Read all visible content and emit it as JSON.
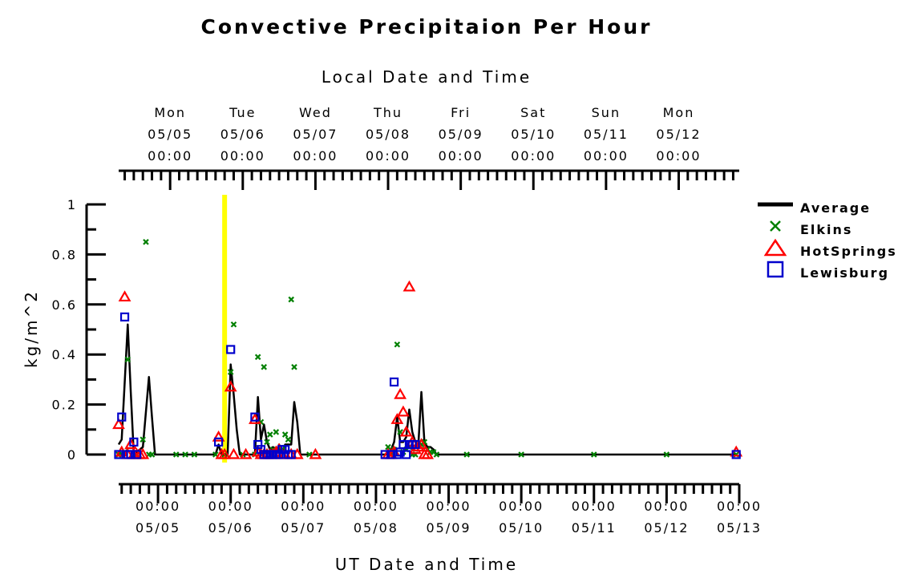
{
  "chart_data": {
    "type": "scatter",
    "title": "Convective Precipitaion Per Hour",
    "top_axis_title": "Local Date and Time",
    "bottom_axis_title": "UT Date and Time",
    "ylabel": "kg/m^2",
    "ylim": [
      0,
      1
    ],
    "y_ticks": [
      "1",
      "0.8",
      "0.6",
      "0.4",
      "0.2",
      "0"
    ],
    "y_tick_values": [
      1,
      0.8,
      0.6,
      0.4,
      0.2,
      0
    ],
    "xlim": [
      "05/04 11:00",
      "05/13 00:00"
    ],
    "bottom_ticks": [
      {
        "time": "00:00",
        "date": "05/05"
      },
      {
        "time": "00:00",
        "date": "05/06"
      },
      {
        "time": "00:00",
        "date": "05/07"
      },
      {
        "time": "00:00",
        "date": "05/08"
      },
      {
        "time": "00:00",
        "date": "05/09"
      },
      {
        "time": "00:00",
        "date": "05/10"
      },
      {
        "time": "00:00",
        "date": "05/11"
      },
      {
        "time": "00:00",
        "date": "05/12"
      },
      {
        "time": "00:00",
        "date": "05/13"
      }
    ],
    "top_ticks": [
      {
        "day": "Mon",
        "date": "05/05",
        "time": "00:00"
      },
      {
        "day": "Tue",
        "date": "05/06",
        "time": "00:00"
      },
      {
        "day": "Wed",
        "date": "05/07",
        "time": "00:00"
      },
      {
        "day": "Thu",
        "date": "05/08",
        "time": "00:00"
      },
      {
        "day": "Fri",
        "date": "05/09",
        "time": "00:00"
      },
      {
        "day": "Sat",
        "date": "05/10",
        "time": "00:00"
      },
      {
        "day": "Sun",
        "date": "05/11",
        "time": "00:00"
      },
      {
        "day": "Mon",
        "date": "05/12",
        "time": "00:00"
      }
    ],
    "local_utc_offset_hours": -4,
    "marker_line": {
      "time": "05/05 22:00",
      "color": "#ffff00"
    },
    "legend_position": "right",
    "series": [
      {
        "name": "Average",
        "style": "line",
        "color": "#000000",
        "points": [
          [
            "05/04 11:00",
            0.04
          ],
          [
            "05/04 12:00",
            0.06
          ],
          [
            "05/04 14:00",
            0.52
          ],
          [
            "05/04 15:00",
            0.25
          ],
          [
            "05/04 16:00",
            0.0
          ],
          [
            "05/04 19:00",
            0.03
          ],
          [
            "05/04 21:00",
            0.31
          ],
          [
            "05/04 22:00",
            0.15
          ],
          [
            "05/04 23:00",
            0.0
          ],
          [
            "05/05 19:00",
            0.0
          ],
          [
            "05/05 20:00",
            0.04
          ],
          [
            "05/05 21:00",
            0.0
          ],
          [
            "05/05 23:00",
            0.0
          ],
          [
            "05/06 00:00",
            0.36
          ],
          [
            "05/06 01:00",
            0.24
          ],
          [
            "05/06 02:00",
            0.1
          ],
          [
            "05/06 03:00",
            0.0
          ],
          [
            "05/06 08:00",
            0.0
          ],
          [
            "05/06 09:00",
            0.23
          ],
          [
            "05/06 10:00",
            0.06
          ],
          [
            "05/06 11:00",
            0.12
          ],
          [
            "05/06 12:00",
            0.05
          ],
          [
            "05/06 13:00",
            0.02
          ],
          [
            "05/06 14:00",
            0.03
          ],
          [
            "05/06 15:00",
            0.01
          ],
          [
            "05/06 16:00",
            0.04
          ],
          [
            "05/06 17:00",
            0.01
          ],
          [
            "05/06 18:00",
            0.04
          ],
          [
            "05/06 19:00",
            0.04
          ],
          [
            "05/06 20:00",
            0.04
          ],
          [
            "05/06 21:00",
            0.21
          ],
          [
            "05/06 22:00",
            0.13
          ],
          [
            "05/06 23:00",
            0.0
          ],
          [
            "05/08 04:00",
            0.0
          ],
          [
            "05/08 05:00",
            0.02
          ],
          [
            "05/08 06:00",
            0.05
          ],
          [
            "05/08 07:00",
            0.15
          ],
          [
            "05/08 08:00",
            0.05
          ],
          [
            "05/08 09:00",
            0.05
          ],
          [
            "05/08 10:00",
            0.07
          ],
          [
            "05/08 11:00",
            0.18
          ],
          [
            "05/08 12:00",
            0.09
          ],
          [
            "05/08 13:00",
            0.05
          ],
          [
            "05/08 14:00",
            0.04
          ],
          [
            "05/08 15:00",
            0.25
          ],
          [
            "05/08 16:00",
            0.05
          ],
          [
            "05/08 17:00",
            0.03
          ],
          [
            "05/08 18:00",
            0.03
          ],
          [
            "05/08 19:00",
            0.02
          ],
          [
            "05/08 20:00",
            0.0
          ],
          [
            "05/12 23:00",
            0.0
          ]
        ]
      },
      {
        "name": "Elkins",
        "style": "x",
        "color": "#008000",
        "points": [
          [
            "05/04 11:00",
            0.0
          ],
          [
            "05/04 12:00",
            0.0
          ],
          [
            "05/04 13:00",
            0.01
          ],
          [
            "05/04 14:00",
            0.38
          ],
          [
            "05/04 17:00",
            0.0
          ],
          [
            "05/04 19:00",
            0.06
          ],
          [
            "05/04 20:00",
            0.85
          ],
          [
            "05/04 21:00",
            0.0
          ],
          [
            "05/04 22:00",
            0.0
          ],
          [
            "05/05 06:00",
            0.0
          ],
          [
            "05/05 09:00",
            0.0
          ],
          [
            "05/05 12:00",
            0.0
          ],
          [
            "05/05 19:00",
            0.0
          ],
          [
            "05/05 22:00",
            0.0
          ],
          [
            "05/06 00:00",
            0.33
          ],
          [
            "05/06 01:00",
            0.52
          ],
          [
            "05/06 04:00",
            0.0
          ],
          [
            "05/06 08:00",
            0.0
          ],
          [
            "05/06 09:00",
            0.39
          ],
          [
            "05/06 10:00",
            0.13
          ],
          [
            "05/06 11:00",
            0.35
          ],
          [
            "05/06 12:00",
            0.05
          ],
          [
            "05/06 13:00",
            0.08
          ],
          [
            "05/06 14:00",
            0.02
          ],
          [
            "05/06 15:00",
            0.09
          ],
          [
            "05/06 16:00",
            0.02
          ],
          [
            "05/06 17:00",
            0.02
          ],
          [
            "05/06 18:00",
            0.08
          ],
          [
            "05/06 19:00",
            0.06
          ],
          [
            "05/06 20:00",
            0.62
          ],
          [
            "05/06 21:00",
            0.35
          ],
          [
            "05/07 02:00",
            0.0
          ],
          [
            "05/08 04:00",
            0.03
          ],
          [
            "05/08 05:00",
            0.0
          ],
          [
            "05/08 06:00",
            0.02
          ],
          [
            "05/08 07:00",
            0.44
          ],
          [
            "05/08 08:00",
            0.09
          ],
          [
            "05/08 09:00",
            0.01
          ],
          [
            "05/08 10:00",
            0.02
          ],
          [
            "05/08 11:00",
            0.03
          ],
          [
            "05/08 12:00",
            0.0
          ],
          [
            "05/08 13:00",
            0.0
          ],
          [
            "05/08 14:00",
            0.04
          ],
          [
            "05/08 15:00",
            0.04
          ],
          [
            "05/08 16:00",
            0.05
          ],
          [
            "05/08 17:00",
            0.02
          ],
          [
            "05/08 18:00",
            0.01
          ],
          [
            "05/08 19:00",
            0.01
          ],
          [
            "05/08 20:00",
            0.0
          ],
          [
            "05/09 06:00",
            0.0
          ],
          [
            "05/10 00:00",
            0.0
          ],
          [
            "05/11 00:00",
            0.0
          ],
          [
            "05/12 00:00",
            0.0
          ],
          [
            "05/12 23:00",
            0.0
          ]
        ]
      },
      {
        "name": "HotSprings",
        "style": "triangle",
        "color": "#ff0000",
        "points": [
          [
            "05/04 11:00",
            0.12
          ],
          [
            "05/04 12:00",
            0.01
          ],
          [
            "05/04 13:00",
            0.63
          ],
          [
            "05/04 14:00",
            0.0
          ],
          [
            "05/04 15:00",
            0.04
          ],
          [
            "05/04 16:00",
            0.0
          ],
          [
            "05/04 17:00",
            0.0
          ],
          [
            "05/04 18:00",
            0.0
          ],
          [
            "05/04 19:00",
            0.0
          ],
          [
            "05/05 20:00",
            0.07
          ],
          [
            "05/05 21:00",
            0.0
          ],
          [
            "05/05 22:00",
            0.0
          ],
          [
            "05/06 00:00",
            0.27
          ],
          [
            "05/06 01:00",
            0.0
          ],
          [
            "05/06 05:00",
            0.0
          ],
          [
            "05/06 08:00",
            0.14
          ],
          [
            "05/06 09:00",
            0.01
          ],
          [
            "05/06 10:00",
            0.0
          ],
          [
            "05/06 11:00",
            0.0
          ],
          [
            "05/06 12:00",
            0.0
          ],
          [
            "05/06 13:00",
            0.0
          ],
          [
            "05/06 14:00",
            0.0
          ],
          [
            "05/06 15:00",
            0.01
          ],
          [
            "05/06 16:00",
            0.02
          ],
          [
            "05/06 17:00",
            0.0
          ],
          [
            "05/06 18:00",
            0.0
          ],
          [
            "05/06 20:00",
            0.0
          ],
          [
            "05/06 22:00",
            0.0
          ],
          [
            "05/07 04:00",
            0.0
          ],
          [
            "05/08 04:00",
            0.0
          ],
          [
            "05/08 05:00",
            0.0
          ],
          [
            "05/08 06:00",
            0.01
          ],
          [
            "05/08 07:00",
            0.14
          ],
          [
            "05/08 08:00",
            0.24
          ],
          [
            "05/08 09:00",
            0.17
          ],
          [
            "05/08 10:00",
            0.09
          ],
          [
            "05/08 11:00",
            0.67
          ],
          [
            "05/08 12:00",
            0.05
          ],
          [
            "05/08 13:00",
            0.02
          ],
          [
            "05/08 14:00",
            0.03
          ],
          [
            "05/08 15:00",
            0.04
          ],
          [
            "05/08 16:00",
            0.0
          ],
          [
            "05/08 17:00",
            0.0
          ],
          [
            "05/12 23:00",
            0.01
          ]
        ]
      },
      {
        "name": "Lewisburg",
        "style": "square",
        "color": "#0000cc",
        "points": [
          [
            "05/04 11:00",
            0.0
          ],
          [
            "05/04 12:00",
            0.15
          ],
          [
            "05/04 13:00",
            0.55
          ],
          [
            "05/04 14:00",
            0.0
          ],
          [
            "05/04 15:00",
            0.0
          ],
          [
            "05/04 16:00",
            0.05
          ],
          [
            "05/04 17:00",
            0.0
          ],
          [
            "05/05 20:00",
            0.05
          ],
          [
            "05/06 00:00",
            0.42
          ],
          [
            "05/06 08:00",
            0.15
          ],
          [
            "05/06 09:00",
            0.04
          ],
          [
            "05/06 10:00",
            0.02
          ],
          [
            "05/06 11:00",
            0.0
          ],
          [
            "05/06 12:00",
            0.0
          ],
          [
            "05/06 13:00",
            0.0
          ],
          [
            "05/06 14:00",
            0.0
          ],
          [
            "05/06 15:00",
            0.0
          ],
          [
            "05/06 16:00",
            0.0
          ],
          [
            "05/06 17:00",
            0.02
          ],
          [
            "05/06 18:00",
            0.02
          ],
          [
            "05/06 19:00",
            0.0
          ],
          [
            "05/06 20:00",
            0.0
          ],
          [
            "05/08 03:00",
            0.0
          ],
          [
            "05/08 05:00",
            0.0
          ],
          [
            "05/08 06:00",
            0.29
          ],
          [
            "05/08 07:00",
            0.0
          ],
          [
            "05/08 08:00",
            0.01
          ],
          [
            "05/08 09:00",
            0.04
          ],
          [
            "05/08 10:00",
            0.0
          ],
          [
            "05/08 11:00",
            0.04
          ],
          [
            "05/08 12:00",
            0.04
          ],
          [
            "05/08 13:00",
            0.04
          ],
          [
            "05/12 23:00",
            0.0
          ]
        ]
      }
    ]
  }
}
